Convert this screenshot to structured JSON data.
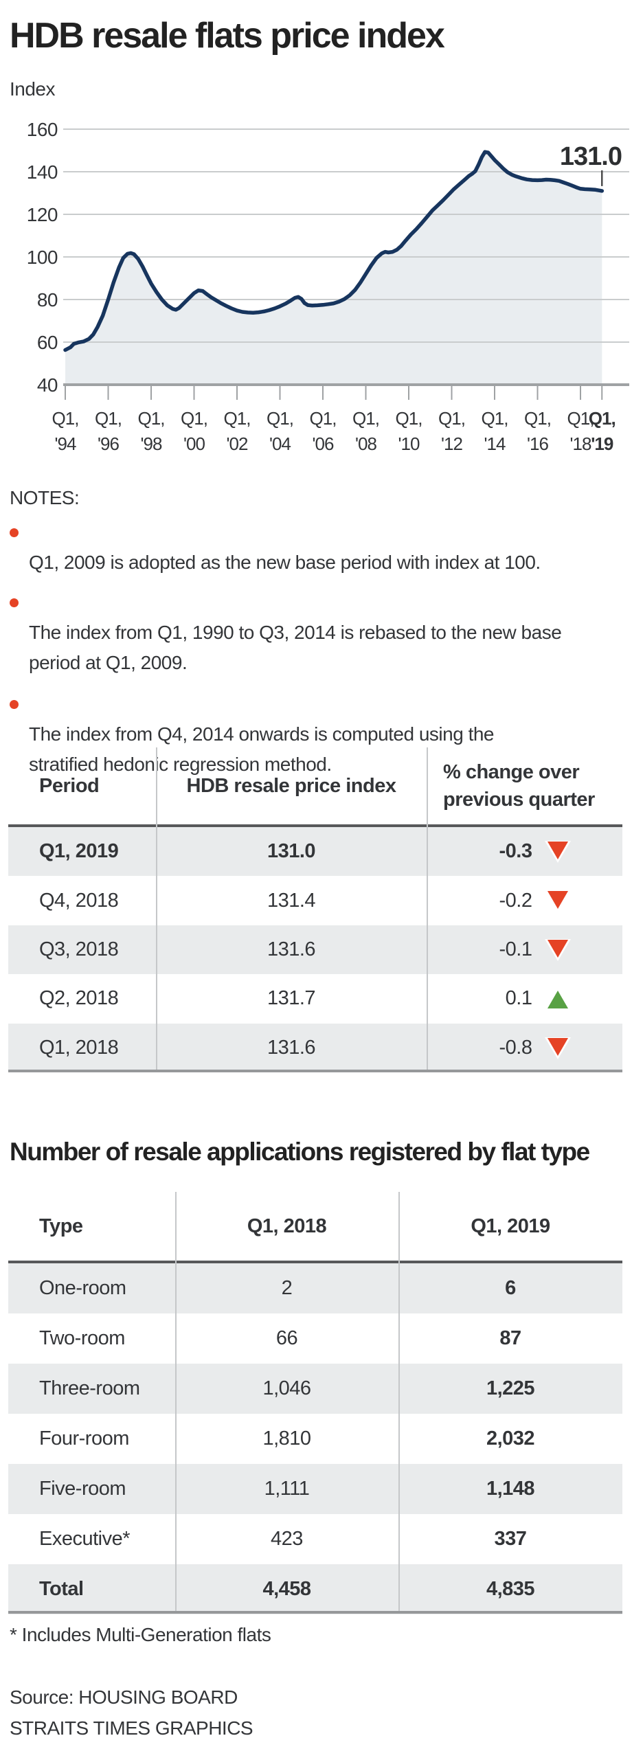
{
  "title": "HDB resale flats price index",
  "chart_data": {
    "type": "area",
    "title": "HDB resale flats price index",
    "y_axis_title": "Index",
    "ylim": [
      40,
      160
    ],
    "grid": true,
    "legend": "none",
    "y_ticks": [
      40,
      60,
      80,
      100,
      120,
      140,
      160
    ],
    "x_ticks": [
      {
        "q": "Q1,",
        "yr": "'94",
        "t": 1994,
        "bold": false
      },
      {
        "q": "Q1,",
        "yr": "'96",
        "t": 1996,
        "bold": false
      },
      {
        "q": "Q1,",
        "yr": "'98",
        "t": 1998,
        "bold": false
      },
      {
        "q": "Q1,",
        "yr": "'00",
        "t": 2000,
        "bold": false
      },
      {
        "q": "Q1,",
        "yr": "'02",
        "t": 2002,
        "bold": false
      },
      {
        "q": "Q1,",
        "yr": "'04",
        "t": 2004,
        "bold": false
      },
      {
        "q": "Q1,",
        "yr": "'06",
        "t": 2006,
        "bold": false
      },
      {
        "q": "Q1,",
        "yr": "'08",
        "t": 2008,
        "bold": false
      },
      {
        "q": "Q1,",
        "yr": "'10",
        "t": 2010,
        "bold": false
      },
      {
        "q": "Q1,",
        "yr": "'12",
        "t": 2012,
        "bold": false
      },
      {
        "q": "Q1,",
        "yr": "'14",
        "t": 2014,
        "bold": false
      },
      {
        "q": "Q1,",
        "yr": "'16",
        "t": 2016,
        "bold": false
      },
      {
        "q": "Q1,",
        "yr": "'18",
        "t": 2018,
        "bold": false
      },
      {
        "q": "Q1,",
        "yr": "'19",
        "t": 2019,
        "bold": true
      }
    ],
    "annotation": {
      "label": "131.0",
      "t": 2019,
      "value": 131.0
    },
    "line_color": "#17355e",
    "fill_color": "#e9edf0",
    "series": [
      [
        1994.0,
        56.3
      ],
      [
        1994.25,
        57.6
      ],
      [
        1994.4,
        59.2
      ],
      [
        1994.6,
        59.8
      ],
      [
        1994.85,
        60.3
      ],
      [
        1995.1,
        61.5
      ],
      [
        1995.3,
        63.5
      ],
      [
        1995.5,
        67
      ],
      [
        1995.75,
        72.5
      ],
      [
        1996.0,
        80
      ],
      [
        1996.25,
        88
      ],
      [
        1996.5,
        95
      ],
      [
        1996.7,
        99.5
      ],
      [
        1996.9,
        101.5
      ],
      [
        1997.05,
        101.8
      ],
      [
        1997.2,
        101.3
      ],
      [
        1997.4,
        99
      ],
      [
        1997.6,
        95.5
      ],
      [
        1997.8,
        91.5
      ],
      [
        1998.0,
        87.5
      ],
      [
        1998.25,
        83.5
      ],
      [
        1998.5,
        80
      ],
      [
        1998.75,
        77.3
      ],
      [
        1999.0,
        75.6
      ],
      [
        1999.15,
        75.2
      ],
      [
        1999.3,
        76
      ],
      [
        1999.5,
        78
      ],
      [
        1999.75,
        80.5
      ],
      [
        2000.0,
        83
      ],
      [
        2000.2,
        84.3
      ],
      [
        2000.4,
        84
      ],
      [
        2000.6,
        82.5
      ],
      [
        2000.8,
        81
      ],
      [
        2001.0,
        79.8
      ],
      [
        2001.25,
        78.3
      ],
      [
        2001.5,
        77
      ],
      [
        2001.75,
        75.8
      ],
      [
        2002.0,
        74.8
      ],
      [
        2002.25,
        74.2
      ],
      [
        2002.5,
        73.9
      ],
      [
        2002.75,
        73.8
      ],
      [
        2003.0,
        74
      ],
      [
        2003.25,
        74.4
      ],
      [
        2003.5,
        75
      ],
      [
        2003.75,
        75.8
      ],
      [
        2004.0,
        76.8
      ],
      [
        2004.25,
        78
      ],
      [
        2004.5,
        79.5
      ],
      [
        2004.7,
        80.8
      ],
      [
        2004.85,
        81.2
      ],
      [
        2005.0,
        80.3
      ],
      [
        2005.15,
        78.3
      ],
      [
        2005.3,
        77.4
      ],
      [
        2005.5,
        77.2
      ],
      [
        2005.75,
        77.3
      ],
      [
        2006.0,
        77.5
      ],
      [
        2006.25,
        77.8
      ],
      [
        2006.5,
        78.2
      ],
      [
        2006.75,
        79
      ],
      [
        2007.0,
        80.2
      ],
      [
        2007.25,
        82
      ],
      [
        2007.5,
        84.5
      ],
      [
        2007.75,
        88
      ],
      [
        2008.0,
        92
      ],
      [
        2008.25,
        96
      ],
      [
        2008.5,
        99.5
      ],
      [
        2008.75,
        101.7
      ],
      [
        2008.9,
        102.4
      ],
      [
        2009.05,
        102.1
      ],
      [
        2009.25,
        102.4
      ],
      [
        2009.45,
        103.4
      ],
      [
        2009.65,
        105.2
      ],
      [
        2009.85,
        107.6
      ],
      [
        2010.1,
        110.5
      ],
      [
        2010.35,
        113
      ],
      [
        2010.6,
        115.8
      ],
      [
        2010.85,
        118.8
      ],
      [
        2011.1,
        121.8
      ],
      [
        2011.35,
        124.2
      ],
      [
        2011.6,
        126.6
      ],
      [
        2011.85,
        129.2
      ],
      [
        2012.1,
        131.8
      ],
      [
        2012.35,
        134
      ],
      [
        2012.6,
        136.2
      ],
      [
        2012.8,
        138
      ],
      [
        2012.95,
        139
      ],
      [
        2013.1,
        140.3
      ],
      [
        2013.25,
        143.3
      ],
      [
        2013.4,
        146.8
      ],
      [
        2013.55,
        149.3
      ],
      [
        2013.7,
        149
      ],
      [
        2013.85,
        147.3
      ],
      [
        2014.0,
        145.5
      ],
      [
        2014.2,
        143.5
      ],
      [
        2014.4,
        141.5
      ],
      [
        2014.6,
        139.8
      ],
      [
        2014.8,
        138.6
      ],
      [
        2015.0,
        137.8
      ],
      [
        2015.25,
        137
      ],
      [
        2015.5,
        136.4
      ],
      [
        2015.75,
        136.1
      ],
      [
        2016.0,
        136
      ],
      [
        2016.2,
        136.1
      ],
      [
        2016.4,
        136.3
      ],
      [
        2016.6,
        136.2
      ],
      [
        2016.8,
        136
      ],
      [
        2017.0,
        135.7
      ],
      [
        2017.2,
        135
      ],
      [
        2017.4,
        134.3
      ],
      [
        2017.6,
        133.5
      ],
      [
        2017.8,
        132.7
      ],
      [
        2018.0,
        132
      ],
      [
        2018.2,
        131.8
      ],
      [
        2018.45,
        131.7
      ],
      [
        2018.7,
        131.5
      ],
      [
        2019.0,
        131
      ]
    ]
  },
  "notes": {
    "title": "NOTES:",
    "items": [
      "Q1, 2009 is adopted as the new base period with index at 100.",
      "The index from Q1, 1990 to Q3, 2014 is rebased to the new base\nperiod at Q1, 2009.",
      "The index from Q4, 2014 onwards is computed using the\nstratified hedonic regression method."
    ]
  },
  "table1": {
    "headers": [
      "Period",
      "HDB resale price index",
      "% change over\nprevious quarter"
    ],
    "rows": [
      {
        "period": "Q1, 2019",
        "index": "131.0",
        "change": "-0.3",
        "direction": "down"
      },
      {
        "period": "Q4, 2018",
        "index": "131.4",
        "change": "-0.2",
        "direction": "down"
      },
      {
        "period": "Q3, 2018",
        "index": "131.6",
        "change": "-0.1",
        "direction": "down"
      },
      {
        "period": "Q2, 2018",
        "index": "131.7",
        "change": "0.1",
        "direction": "up"
      },
      {
        "period": "Q1, 2018",
        "index": "131.6",
        "change": "-0.8",
        "direction": "down"
      }
    ]
  },
  "section2_title": "Number of resale applications registered by flat type",
  "table2": {
    "headers": [
      "Type",
      "Q1, 2018",
      "Q1, 2019"
    ],
    "rows": [
      {
        "type": "One-room",
        "q1_2018": "2",
        "q1_2019": "6"
      },
      {
        "type": "Two-room",
        "q1_2018": "66",
        "q1_2019": "87"
      },
      {
        "type": "Three-room",
        "q1_2018": "1,046",
        "q1_2019": "1,225"
      },
      {
        "type": "Four-room",
        "q1_2018": "1,810",
        "q1_2019": "2,032"
      },
      {
        "type": "Five-room",
        "q1_2018": "1,111",
        "q1_2019": "1,148"
      },
      {
        "type": "Executive*",
        "q1_2018": "423",
        "q1_2019": "337"
      },
      {
        "type": "Total",
        "q1_2018": "4,458",
        "q1_2019": "4,835"
      }
    ]
  },
  "footnote": "* Includes Multi-Generation flats",
  "source_lines": [
    "Source: HOUSING BOARD",
    "STRAITS TIMES GRAPHICS"
  ],
  "colors": {
    "accent_red": "#e54325",
    "accent_green": "#58a144",
    "navy": "#17355e",
    "zebra": "#e9ebec",
    "grid": "#c9cccd"
  }
}
